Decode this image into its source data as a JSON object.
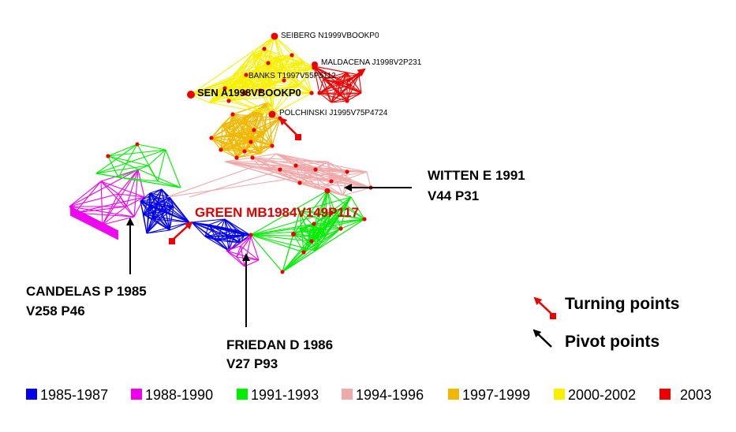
{
  "colors": {
    "1985-1987": "#0000ee",
    "1988-1990": "#ee00ee",
    "1991-1993": "#00ee00",
    "1994-1996": "#f0a8a8",
    "1997-1999": "#f0b800",
    "2000-2002": "#f8f000",
    "2003": "#ee0000",
    "node": "#ee0000",
    "pivot_arrow": "#000000",
    "turning_arrow": "#ee0000"
  },
  "node_labels": {
    "seiberg": "SEIBERG N1999VBOOKP0",
    "maldacena": "MALDACENA J1998V2P231",
    "banks": "BANKS T1997V55P5112",
    "sen": "SEN A1998VBOOKP0",
    "polchinski": "POLCHINSKI J1995V75P4724",
    "green": "GREEN MB1984V149P117"
  },
  "annotations": {
    "witten_line1": "WITTEN E 1991",
    "witten_line2": "V44 P31",
    "candelas_line1": "CANDELAS P 1985",
    "candelas_line2": "V258 P46",
    "friedan_line1": "FRIEDAN D 1986",
    "friedan_line2": "V27 P93"
  },
  "key": {
    "turning": "Turning points",
    "pivot": "Pivot points"
  },
  "legend": [
    {
      "label": "1985-1987",
      "color": "#0000ee"
    },
    {
      "label": "1988-1990",
      "color": "#ee00ee"
    },
    {
      "label": "1991-1993",
      "color": "#00ee00"
    },
    {
      "label": "1994-1996",
      "color": "#f0a8a8"
    },
    {
      "label": "1997-1999",
      "color": "#f0b800"
    },
    {
      "label": "2000-2002",
      "color": "#f8f000"
    },
    {
      "label": "2003",
      "color": "#ee0000"
    }
  ]
}
